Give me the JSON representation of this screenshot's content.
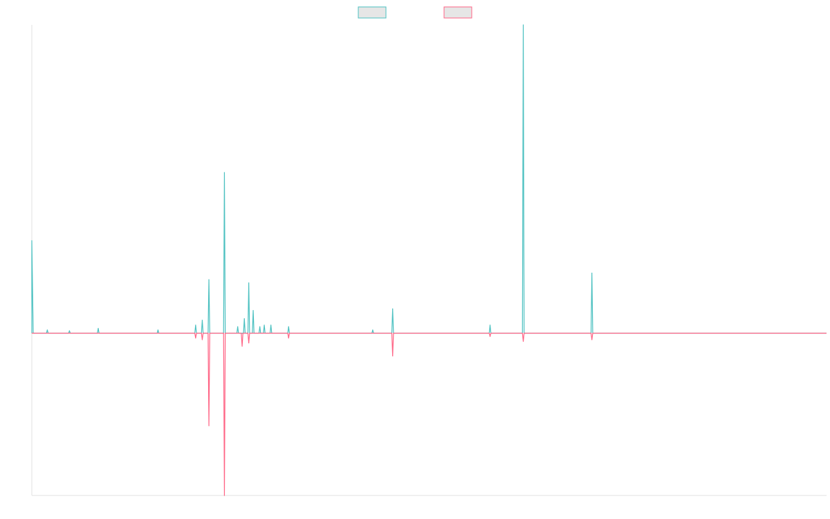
{
  "chart_data": {
    "type": "line",
    "title": "",
    "xlabel": "",
    "ylabel": "",
    "legend_position": "top-center",
    "grid": false,
    "axis_color": "#e0e0e0",
    "x_range": [
      0,
      359
    ],
    "ylim": [
      -100,
      190
    ],
    "series": [
      {
        "name": "",
        "color": "#4bc0c0",
        "fill": "#e6e6e6",
        "points": [
          [
            0,
            57
          ],
          [
            1,
            0
          ],
          [
            7,
            2
          ],
          [
            17,
            1.5
          ],
          [
            30,
            3
          ],
          [
            57,
            2
          ],
          [
            74,
            5
          ],
          [
            77,
            8
          ],
          [
            80,
            33
          ],
          [
            87,
            99
          ],
          [
            93,
            4
          ],
          [
            96,
            9
          ],
          [
            98,
            31
          ],
          [
            100,
            14
          ],
          [
            103,
            4
          ],
          [
            105,
            5
          ],
          [
            108,
            5
          ],
          [
            116,
            4
          ],
          [
            154,
            2
          ],
          [
            163,
            15
          ],
          [
            207,
            5
          ],
          [
            222,
            190
          ],
          [
            253,
            37
          ]
        ]
      },
      {
        "name": "",
        "color": "#ff6384",
        "fill": "#e6e6e6",
        "points": [
          [
            74,
            -3
          ],
          [
            77,
            -4
          ],
          [
            80,
            -57
          ],
          [
            87,
            -100
          ],
          [
            95,
            -8
          ],
          [
            98,
            -6
          ],
          [
            116,
            -3
          ],
          [
            163,
            -14
          ],
          [
            207,
            -2
          ],
          [
            222,
            -5
          ],
          [
            253,
            -4
          ]
        ]
      }
    ]
  }
}
